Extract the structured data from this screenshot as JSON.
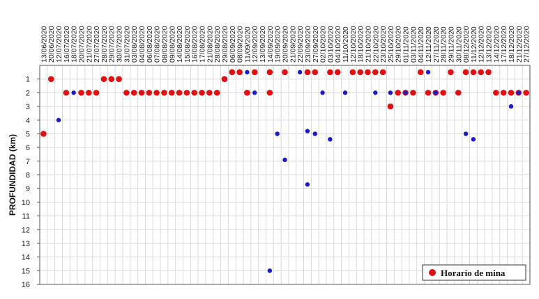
{
  "chart_data": {
    "type": "scatter",
    "title": "",
    "xlabel": "",
    "ylabel": "PROFUNDIDAD (km)",
    "ylim": [
      0.5,
      16
    ],
    "y_reversed": true,
    "y_ticks": [
      1,
      2,
      3,
      4,
      5,
      6,
      7,
      8,
      9,
      10,
      11,
      12,
      13,
      14,
      15,
      16
    ],
    "grid": true,
    "legend_position": "bottom-right",
    "x_tick_labels": [
      "13/06/2020",
      "20/06/2020",
      "12/07/2020",
      "16/07/2020",
      "18/07/2020",
      "20/07/2020",
      "21/07/2020",
      "27/07/2020",
      "28/07/2020",
      "29/07/2020",
      "30/07/2020",
      "31/07/2020",
      "03/08/2020",
      "04/08/2020",
      "06/08/2020",
      "07/08/2020",
      "08/08/2020",
      "09/08/2020",
      "14/08/2020",
      "15/08/2020",
      "16/08/2020",
      "17/08/2020",
      "21/08/2020",
      "28/08/2020",
      "29/08/2020",
      "06/09/2020",
      "08/09/2020",
      "11/09/2020",
      "12/09/2020",
      "13/09/2020",
      "14/09/2020",
      "19/09/2020",
      "20/09/2020",
      "21/09/2020",
      "22/09/2020",
      "23/09/2020",
      "27/09/2020",
      "02/10/2020",
      "03/10/2020",
      "04/10/2020",
      "11/10/2020",
      "12/10/2020",
      "18/10/2020",
      "21/10/2020",
      "22/10/2020",
      "23/10/2020",
      "25/10/2020",
      "29/10/2020",
      "01/11/2020",
      "03/11/2020",
      "04/11/2020",
      "12/11/2020",
      "27/11/2020",
      "28/11/2020",
      "29/11/2020",
      "30/11/2020",
      "08/12/2020",
      "11/12/2020",
      "12/12/2020",
      "13/12/2020",
      "14/12/2020",
      "17/12/2020",
      "18/12/2020",
      "21/12/2020",
      "27/12/2020"
    ],
    "series": [
      {
        "name": "Horario de mina",
        "color": "#dd1111",
        "x": [
          0,
          1,
          3,
          5,
          6,
          7,
          8,
          9,
          10,
          11,
          12,
          13,
          14,
          15,
          16,
          17,
          18,
          19,
          20,
          21,
          22,
          23,
          24,
          25,
          26,
          27,
          27,
          28,
          30,
          30,
          32,
          35,
          36,
          38,
          39,
          41,
          42,
          43,
          44,
          45,
          46,
          47,
          48,
          49,
          50,
          51,
          52,
          53,
          54,
          55,
          56,
          57,
          58,
          59,
          60,
          61,
          62,
          63,
          64
        ],
        "y": [
          5,
          1,
          2,
          2,
          2,
          2,
          1,
          1,
          1,
          2,
          2,
          2,
          2,
          2,
          2,
          2,
          2,
          2,
          2,
          2,
          2,
          2,
          1,
          0.5,
          0.5,
          2,
          2,
          0.5,
          2,
          0.5,
          0.5,
          0.5,
          0.5,
          0.5,
          0.5,
          0.5,
          0.5,
          0.5,
          0.5,
          0.5,
          3,
          2,
          2,
          2,
          0.5,
          2,
          2,
          2,
          0.5,
          2,
          0.5,
          0.5,
          0.5,
          0.5,
          2,
          2,
          2,
          2,
          2
        ],
        "note_indices": []
      },
      {
        "name": "",
        "color": "#1a1acc",
        "x": [
          2,
          4,
          27,
          28,
          30,
          31,
          32,
          34,
          35,
          35,
          36,
          37,
          38,
          40,
          44,
          46,
          48,
          51,
          52,
          56,
          57,
          62,
          63
        ],
        "y": [
          4,
          2,
          0.5,
          2,
          15,
          5,
          6.9,
          0.5,
          4.8,
          8.7,
          5,
          2,
          5.4,
          2,
          2,
          2,
          2,
          0.5,
          2,
          5,
          5.4,
          3,
          2
        ]
      }
    ]
  }
}
